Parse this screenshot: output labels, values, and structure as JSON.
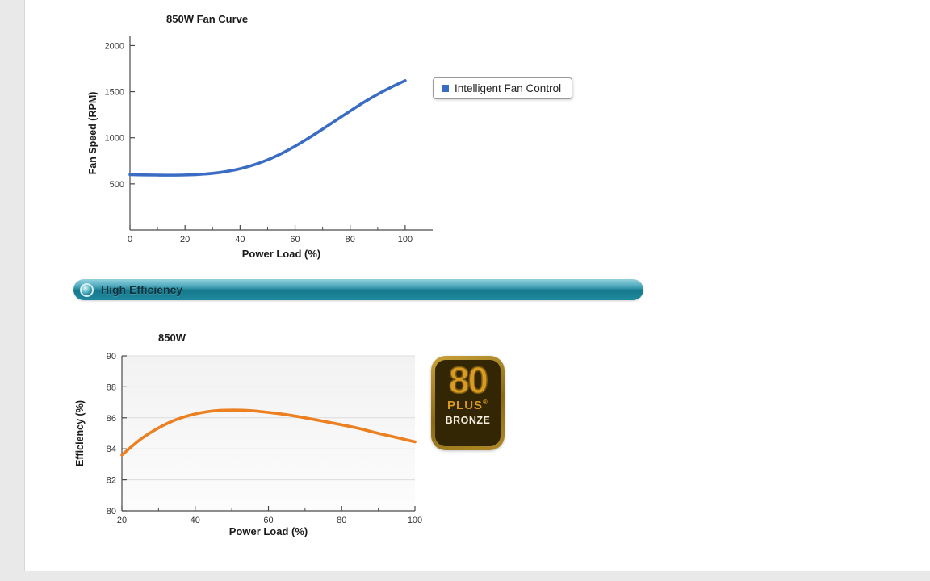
{
  "legend": {
    "label": "Intelligent Fan Control",
    "marker_color": "#3b6cc4"
  },
  "section_header": {
    "label": "High Efficiency",
    "bar_color": "#15798e"
  },
  "badge": {
    "number": "80",
    "plus": "PLUS",
    "registered_mark": "®",
    "tier": "BRONZE",
    "gold_color": "#d89a20",
    "background_color": "#332605"
  },
  "chart_data": [
    {
      "type": "line",
      "title": "850W Fan Curve",
      "xlabel": "Power Load (%)",
      "ylabel": "Fan Speed (RPM)",
      "xlim": [
        0,
        110
      ],
      "ylim": [
        0,
        2100
      ],
      "xticks": [
        0,
        20,
        40,
        60,
        80,
        100
      ],
      "xticks_minor": [
        10,
        30,
        50,
        70,
        90
      ],
      "yticks": [
        500,
        1000,
        1500,
        2000
      ],
      "grid": false,
      "legend_position": "right",
      "series": [
        {
          "name": "Intelligent Fan Control",
          "color": "#3b6cc4",
          "x": [
            0,
            5,
            10,
            15,
            20,
            25,
            30,
            35,
            40,
            45,
            50,
            55,
            60,
            65,
            70,
            75,
            80,
            85,
            90,
            95,
            100
          ],
          "y": [
            600,
            597,
            595,
            594,
            596,
            602,
            614,
            634,
            664,
            706,
            760,
            828,
            908,
            998,
            1094,
            1192,
            1290,
            1385,
            1472,
            1550,
            1620
          ]
        }
      ]
    },
    {
      "type": "line",
      "title": "850W",
      "xlabel": "Power Load (%)",
      "ylabel": "Efficiency (%)",
      "xlim": [
        20,
        100
      ],
      "ylim": [
        80,
        90
      ],
      "xticks": [
        20,
        40,
        60,
        80,
        100
      ],
      "xticks_minor": [
        30,
        50,
        70,
        90
      ],
      "yticks": [
        80,
        82,
        84,
        86,
        88,
        90
      ],
      "grid": true,
      "plot_bg": [
        "#f2f2f2",
        "#fcfcfc"
      ],
      "series": [
        {
          "name": "850W",
          "color": "#ec7f1f",
          "x": [
            20,
            25,
            30,
            35,
            40,
            45,
            50,
            55,
            60,
            65,
            70,
            75,
            80,
            85,
            90,
            95,
            100
          ],
          "y": [
            83.6,
            84.6,
            85.35,
            85.9,
            86.25,
            86.45,
            86.5,
            86.47,
            86.35,
            86.2,
            86.0,
            85.78,
            85.55,
            85.3,
            85.0,
            84.73,
            84.45
          ]
        }
      ]
    }
  ]
}
